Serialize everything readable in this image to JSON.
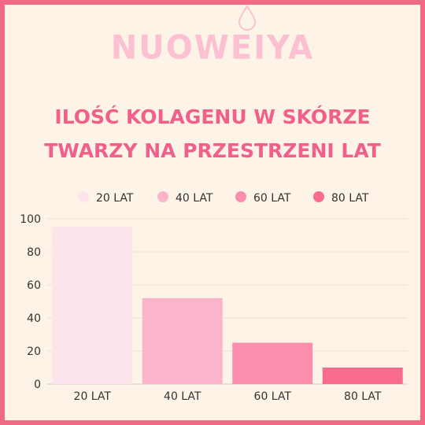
{
  "brand": {
    "name": "NUOWEIYA"
  },
  "chart_data": {
    "type": "bar",
    "title_lines": [
      "ILOŚĆ KOLAGENU W SKÓRZE",
      "TWARZY NA PRZESTRZENI LAT"
    ],
    "categories": [
      "20 LAT",
      "40 LAT",
      "60 LAT",
      "80 LAT"
    ],
    "values": [
      95,
      52,
      25,
      10
    ],
    "colors": [
      "#fde3ec",
      "#fbb5cb",
      "#fb8eac",
      "#f96b8f"
    ],
    "legend": [
      "20 LAT",
      "40 LAT",
      "60 LAT",
      "80 LAT"
    ],
    "legend_position": "top",
    "y_ticks": [
      0,
      20,
      40,
      60,
      80,
      100
    ],
    "ylim": [
      0,
      100
    ],
    "grid": true
  },
  "colors": {
    "accent": "#f0608a",
    "background": "#fdf3e6",
    "border": "#f06a85",
    "brand": "#fbc1d2"
  }
}
